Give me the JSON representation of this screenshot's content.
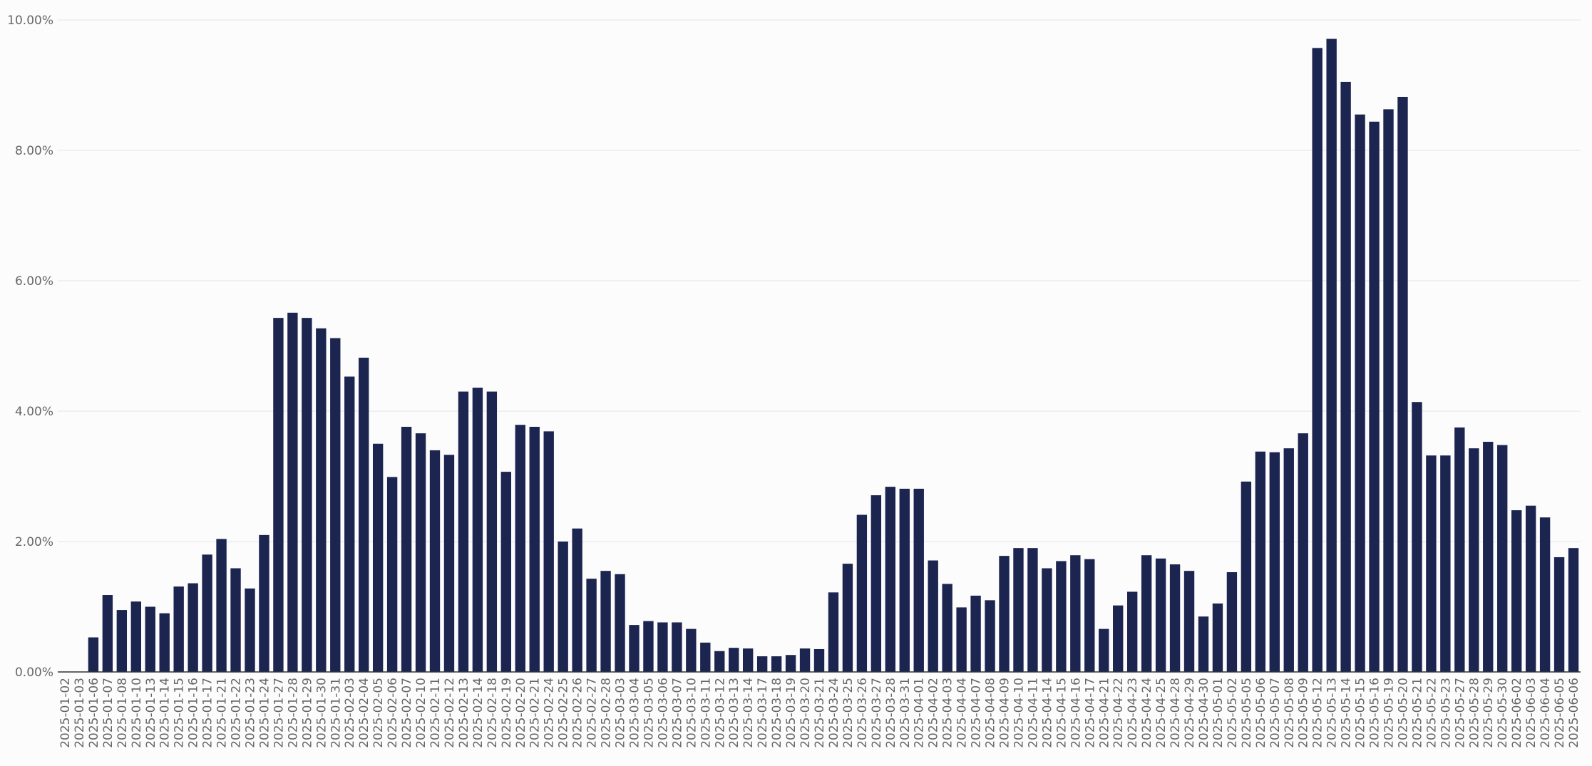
{
  "chart_data": {
    "type": "bar",
    "categories": [
      "2025-01-02",
      "2025-01-03",
      "2025-01-06",
      "2025-01-07",
      "2025-01-08",
      "2025-01-10",
      "2025-01-13",
      "2025-01-14",
      "2025-01-15",
      "2025-01-16",
      "2025-01-17",
      "2025-01-21",
      "2025-01-22",
      "2025-01-23",
      "2025-01-24",
      "2025-01-27",
      "2025-01-28",
      "2025-01-29",
      "2025-01-30",
      "2025-01-31",
      "2025-02-03",
      "2025-02-04",
      "2025-02-05",
      "2025-02-06",
      "2025-02-07",
      "2025-02-10",
      "2025-02-11",
      "2025-02-12",
      "2025-02-13",
      "2025-02-14",
      "2025-02-18",
      "2025-02-19",
      "2025-02-20",
      "2025-02-21",
      "2025-02-24",
      "2025-02-25",
      "2025-02-26",
      "2025-02-27",
      "2025-02-28",
      "2025-03-03",
      "2025-03-04",
      "2025-03-05",
      "2025-03-06",
      "2025-03-07",
      "2025-03-10",
      "2025-03-11",
      "2025-03-12",
      "2025-03-13",
      "2025-03-14",
      "2025-03-17",
      "2025-03-18",
      "2025-03-19",
      "2025-03-20",
      "2025-03-21",
      "2025-03-24",
      "2025-03-25",
      "2025-03-26",
      "2025-03-27",
      "2025-03-28",
      "2025-03-31",
      "2025-04-01",
      "2025-04-02",
      "2025-04-03",
      "2025-04-04",
      "2025-04-07",
      "2025-04-08",
      "2025-04-09",
      "2025-04-10",
      "2025-04-11",
      "2025-04-14",
      "2025-04-15",
      "2025-04-16",
      "2025-04-17",
      "2025-04-21",
      "2025-04-22",
      "2025-04-23",
      "2025-04-24",
      "2025-04-25",
      "2025-04-28",
      "2025-04-29",
      "2025-04-30",
      "2025-05-01",
      "2025-05-02",
      "2025-05-05",
      "2025-05-06",
      "2025-05-07",
      "2025-05-08",
      "2025-05-09",
      "2025-05-12",
      "2025-05-13",
      "2025-05-14",
      "2025-05-15",
      "2025-05-16",
      "2025-05-19",
      "2025-05-20",
      "2025-05-21",
      "2025-05-22",
      "2025-05-23",
      "2025-05-27",
      "2025-05-28",
      "2025-05-29",
      "2025-05-30",
      "2025-06-02",
      "2025-06-03",
      "2025-06-04",
      "2025-06-05",
      "2025-06-06"
    ],
    "values": [
      0,
      0,
      0.53,
      1.18,
      0.95,
      1.08,
      1.0,
      0.9,
      1.31,
      1.36,
      1.8,
      2.04,
      1.59,
      1.28,
      2.1,
      5.43,
      5.51,
      5.43,
      5.27,
      5.12,
      4.53,
      4.82,
      3.5,
      2.99,
      3.76,
      3.66,
      3.4,
      3.33,
      4.3,
      4.36,
      4.3,
      3.07,
      3.79,
      3.76,
      3.69,
      2.0,
      2.2,
      1.43,
      1.55,
      1.5,
      0.72,
      0.78,
      0.76,
      0.76,
      0.66,
      0.45,
      0.32,
      0.37,
      0.36,
      0.24,
      0.24,
      0.26,
      0.36,
      0.35,
      1.22,
      1.66,
      2.41,
      2.71,
      2.84,
      2.81,
      2.81,
      1.71,
      1.35,
      0.99,
      1.17,
      1.1,
      1.78,
      1.9,
      1.9,
      1.59,
      1.7,
      1.79,
      1.73,
      0.66,
      1.02,
      1.23,
      1.79,
      1.74,
      1.65,
      1.55,
      0.85,
      1.05,
      1.53,
      2.92,
      3.38,
      3.37,
      3.43,
      3.66,
      9.57,
      9.71,
      9.05,
      8.55,
      8.44,
      8.63,
      8.82,
      4.14,
      3.32,
      3.32,
      3.75,
      3.43,
      3.53,
      3.48,
      2.48,
      2.55,
      2.37,
      1.76,
      1.9
    ],
    "color": "#1c2550",
    "ylim": [
      0,
      10
    ],
    "yticks": [
      {
        "value": 0,
        "label": "0.00%"
      },
      {
        "value": 2,
        "label": "2.00%"
      },
      {
        "value": 4,
        "label": "4.00%"
      },
      {
        "value": 6,
        "label": "6.00%"
      },
      {
        "value": 8,
        "label": "8.00%"
      },
      {
        "value": 10,
        "label": "10.00%"
      }
    ],
    "grid": true
  }
}
